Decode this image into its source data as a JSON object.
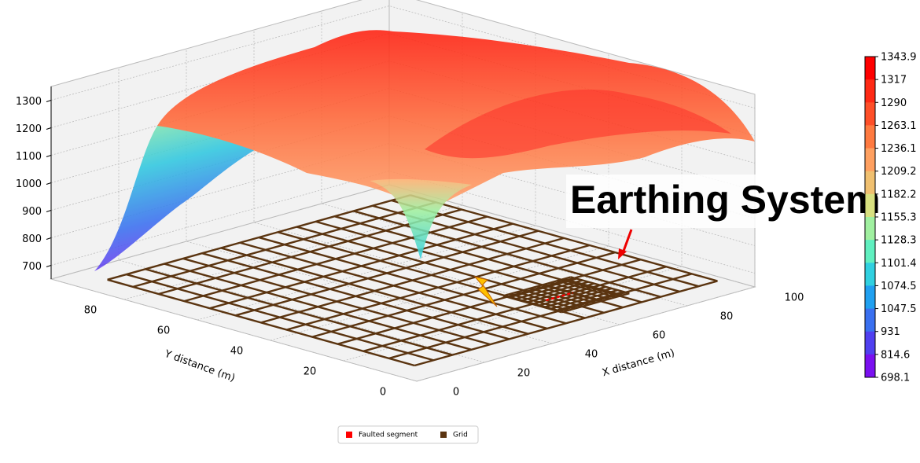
{
  "chart_data": {
    "type": "surface3d",
    "xlabel": "X distance (m)",
    "ylabel": "Y distance (m)",
    "xticks": [
      0,
      20,
      40,
      60,
      80,
      100
    ],
    "yticks": [
      0,
      20,
      40,
      60,
      80
    ],
    "zlim": [
      650,
      1350
    ],
    "zticks": [
      700,
      800,
      900,
      1000,
      1100,
      1200,
      1300
    ],
    "colorbar_ticks": [
      1343.9,
      1317,
      1290,
      1263.1,
      1236.1,
      1209.2,
      1182.2,
      1155.3,
      1128.3,
      1101.4,
      1074.5,
      1047.5,
      931,
      814.6,
      698.1
    ],
    "colorbar_colors": [
      "#ff0000",
      "#ff2a15",
      "#ff4f28",
      "#ff7a40",
      "#ffa060",
      "#f0c070",
      "#d8e080",
      "#a0f0a0",
      "#60f0c0",
      "#30d0e0",
      "#20a0f0",
      "#3a70f0",
      "#5040f0",
      "#7a10f0"
    ],
    "annotation": "Earthing System",
    "legend": [
      {
        "name": "Faulted segment",
        "color": "#ff0000"
      },
      {
        "name": "Grid",
        "color": "#5a3410"
      }
    ]
  }
}
